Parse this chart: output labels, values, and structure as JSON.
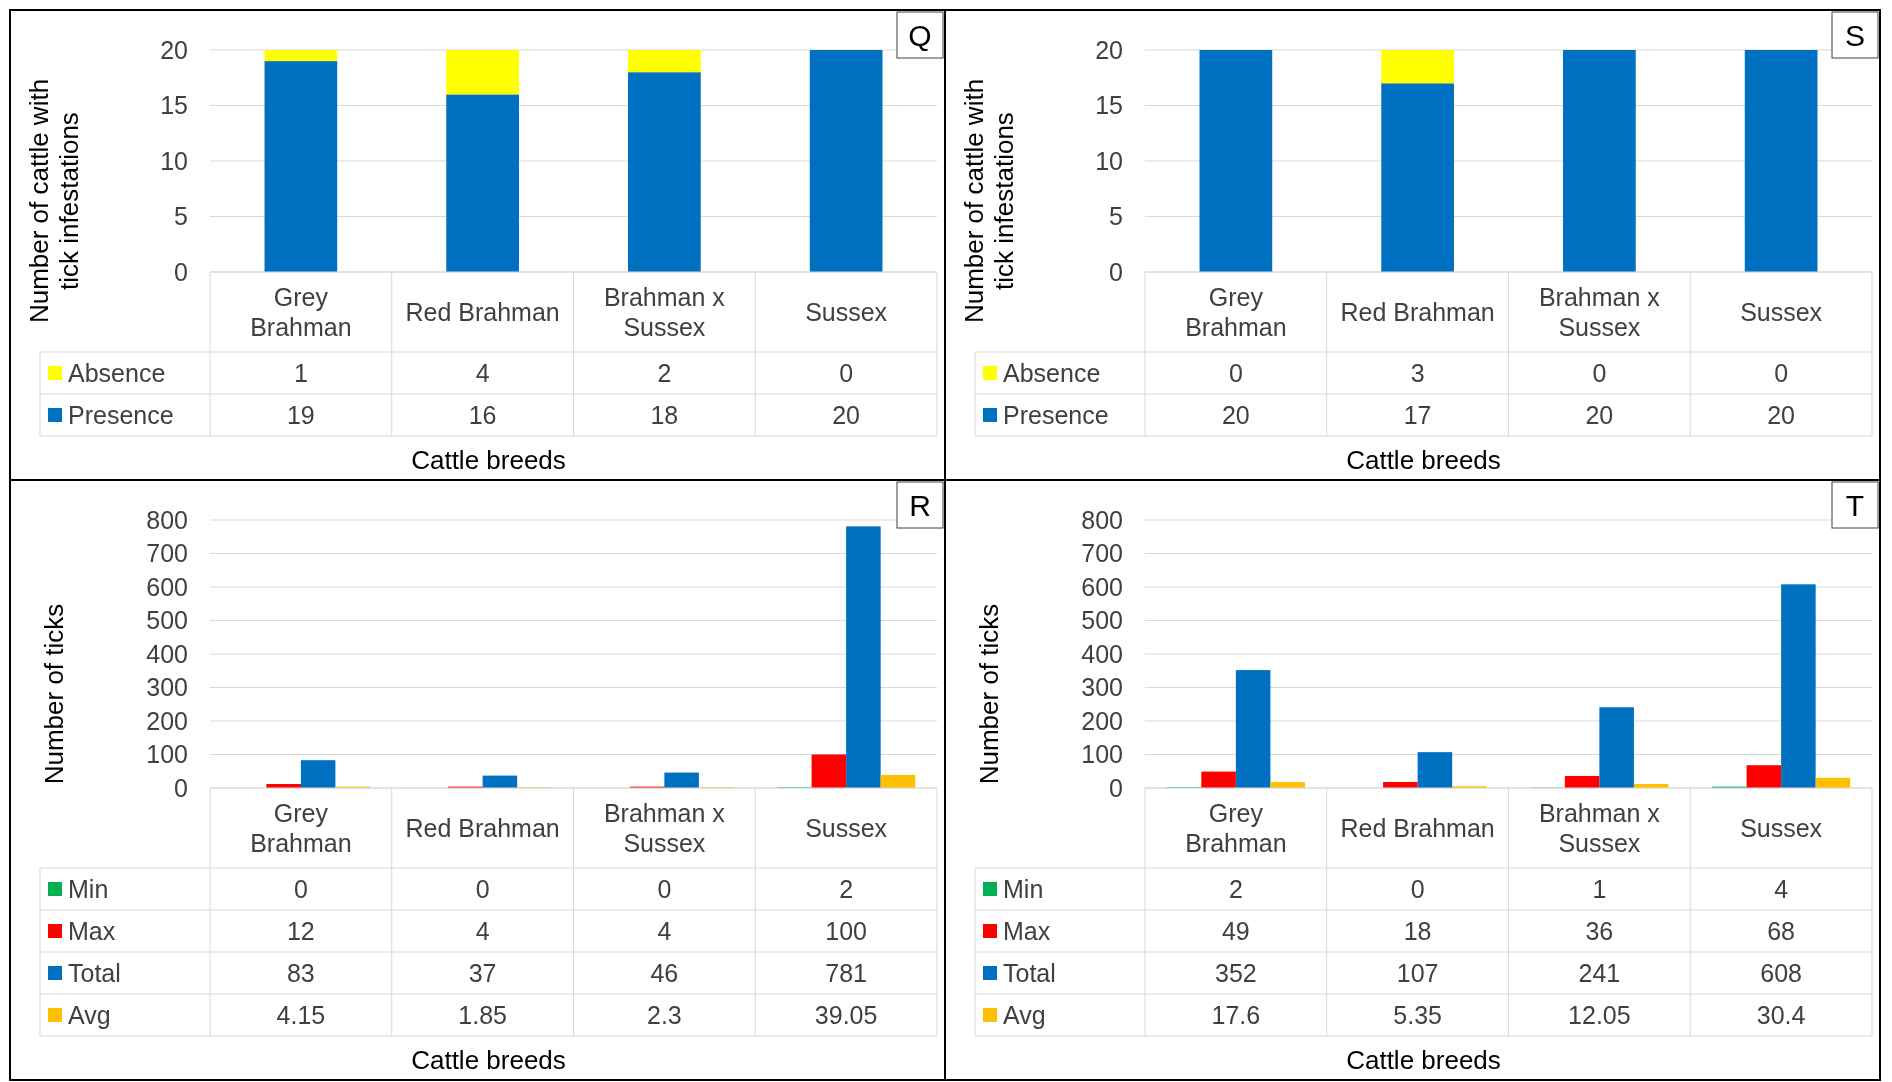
{
  "chart_data": [
    {
      "type": "bar",
      "title": "Q",
      "xlabel": "Cattle breeds",
      "ylabel": "Number of cattle with tick infestations",
      "categories": [
        "Grey Brahman",
        "Red Brahman",
        "Brahman x Sussex",
        "Sussex"
      ],
      "stacked": true,
      "ylim": [
        0,
        20
      ],
      "yticks": [
        0,
        5,
        10,
        15,
        20
      ],
      "grid": "y",
      "legend": "bottom",
      "data_labels": true,
      "series": [
        {
          "name": "Presence",
          "color": "#0070c0",
          "values": [
            19,
            16,
            18,
            20
          ]
        },
        {
          "name": "Absence",
          "color": "#ffff00",
          "values": [
            1,
            4,
            2,
            0
          ]
        }
      ]
    },
    {
      "type": "bar",
      "title": "S",
      "xlabel": "Cattle breeds",
      "ylabel": "Number of cattle with tick infestations",
      "categories": [
        "Grey Brahman",
        "Red Brahman",
        "Brahman x Sussex",
        "Sussex"
      ],
      "stacked": true,
      "ylim": [
        0,
        20
      ],
      "yticks": [
        0,
        5,
        10,
        15,
        20
      ],
      "grid": "y",
      "legend": "bottom",
      "data_labels": true,
      "series": [
        {
          "name": "Presence",
          "color": "#0070c0",
          "values": [
            20,
            17,
            20,
            20
          ]
        },
        {
          "name": "Absence",
          "color": "#ffff00",
          "values": [
            0,
            3,
            0,
            0
          ]
        }
      ]
    },
    {
      "type": "bar",
      "title": "R",
      "xlabel": "Cattle breeds",
      "ylabel": "Number of ticks",
      "categories": [
        "Grey Brahman",
        "Red Brahman",
        "Brahman x Sussex",
        "Sussex"
      ],
      "ylim": [
        0,
        800
      ],
      "yticks": [
        0,
        100,
        200,
        300,
        400,
        500,
        600,
        700,
        800
      ],
      "grid": "y",
      "legend": "bottom",
      "data_labels": true,
      "series": [
        {
          "name": "Min",
          "color": "#00b050",
          "values": [
            0,
            0,
            0,
            2
          ]
        },
        {
          "name": "Max",
          "color": "#ff0000",
          "values": [
            12,
            4,
            4,
            100
          ]
        },
        {
          "name": "Total",
          "color": "#0070c0",
          "values": [
            83,
            37,
            46,
            781
          ]
        },
        {
          "name": "Avg",
          "color": "#ffc000",
          "values": [
            4.15,
            1.85,
            2.3,
            39.05
          ]
        }
      ]
    },
    {
      "type": "bar",
      "title": "T",
      "xlabel": "Cattle breeds",
      "ylabel": "Number of ticks",
      "categories": [
        "Grey Brahman",
        "Red Brahman",
        "Brahman x Sussex",
        "Sussex"
      ],
      "ylim": [
        0,
        800
      ],
      "yticks": [
        0,
        100,
        200,
        300,
        400,
        500,
        600,
        700,
        800
      ],
      "grid": "y",
      "legend": "bottom",
      "data_labels": true,
      "series": [
        {
          "name": "Min",
          "color": "#00b050",
          "values": [
            2,
            0,
            1,
            4
          ]
        },
        {
          "name": "Max",
          "color": "#ff0000",
          "values": [
            49,
            18,
            36,
            68
          ]
        },
        {
          "name": "Total",
          "color": "#0070c0",
          "values": [
            352,
            107,
            241,
            608
          ]
        },
        {
          "name": "Avg",
          "color": "#ffc000",
          "values": [
            17.6,
            5.35,
            12.05,
            30.4
          ]
        }
      ]
    }
  ]
}
